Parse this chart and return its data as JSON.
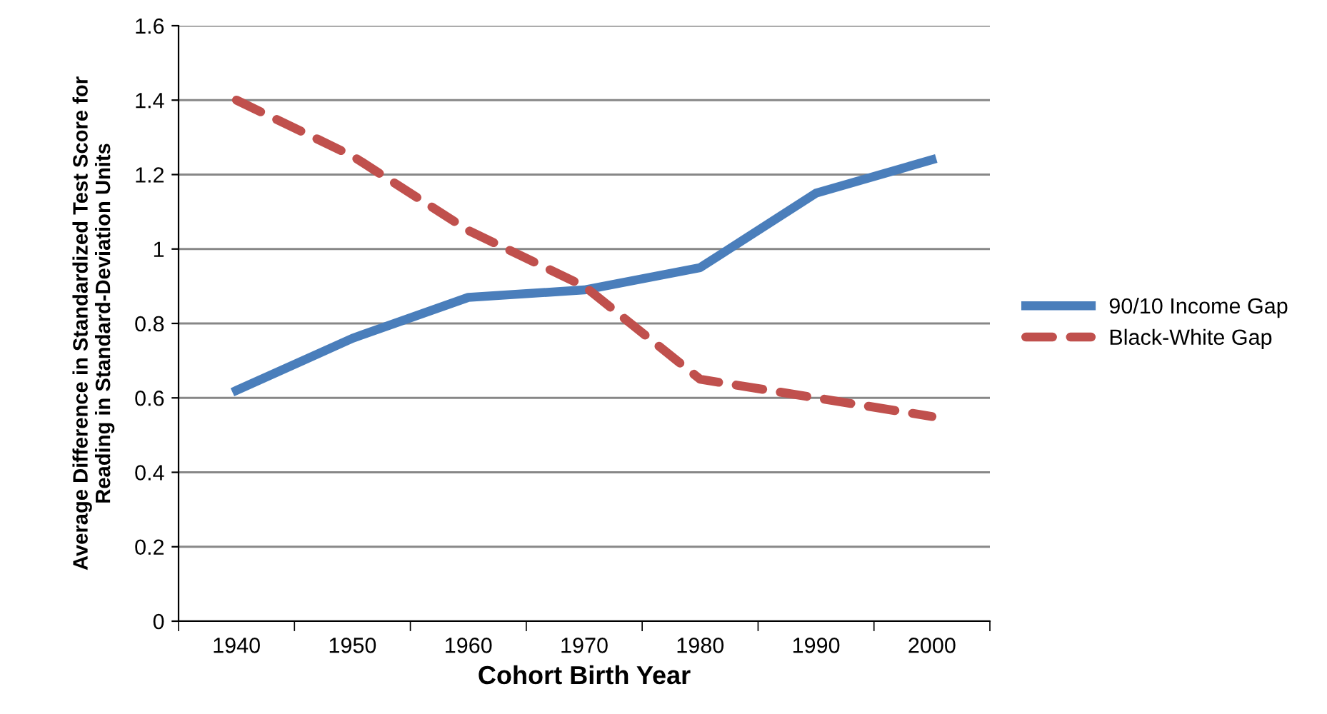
{
  "chart_data": {
    "type": "line",
    "xlabel": "Cohort Birth Year",
    "ylabel": "Average Difference in Standardized Test Score for\nReading in Standard-Deviation Units",
    "categories": [
      "1940",
      "1950",
      "1960",
      "1970",
      "1980",
      "1990",
      "2000"
    ],
    "series": [
      {
        "name": "90/10 Income Gap",
        "color": "#4a7ebb",
        "values": [
          0.62,
          0.76,
          0.87,
          0.89,
          0.95,
          1.15,
          1.24
        ],
        "line_style": "solid"
      },
      {
        "name": "Black-White Gap",
        "color": "#c0504d",
        "values": [
          1.4,
          1.25,
          1.05,
          0.9,
          0.65,
          0.6,
          0.55
        ],
        "line_style": "dashed"
      }
    ],
    "ylim": [
      0,
      1.6
    ],
    "yticks": [
      0,
      0.2,
      0.4,
      0.6,
      0.8,
      1,
      1.2,
      1.4,
      1.6
    ],
    "grid": "y",
    "legend": "right",
    "marker": "none"
  }
}
